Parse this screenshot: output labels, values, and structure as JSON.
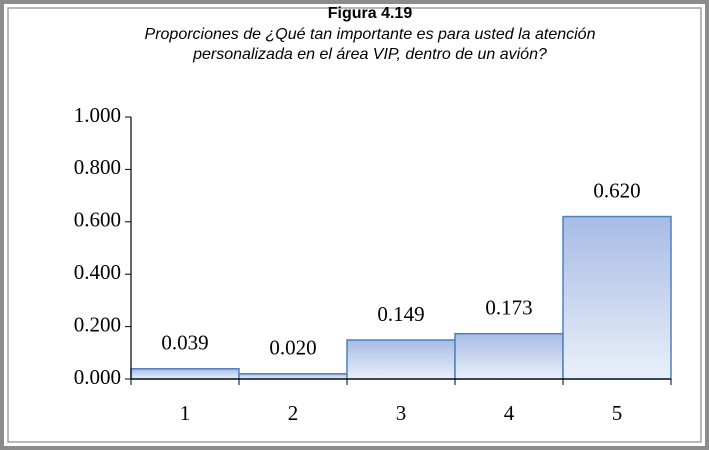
{
  "chart_data": {
    "type": "bar",
    "title": "Figura 4.19",
    "subtitle": [
      "Proporciones de ¿Qué tan importante es para usted la atención",
      "personalizada en el área VIP, dentro de un avión?"
    ],
    "categories": [
      "1",
      "2",
      "3",
      "4",
      "5"
    ],
    "values": [
      0.039,
      0.02,
      0.149,
      0.173,
      0.62
    ],
    "value_labels": [
      "0.039",
      "0.020",
      "0.149",
      "0.173",
      "0.620"
    ],
    "color": "#4f81bd",
    "ylim": [
      0,
      1
    ],
    "yticks": [
      {
        "value": 0,
        "label": "0.000"
      },
      {
        "value": 0.2,
        "label": "0.200"
      },
      {
        "value": 0.4,
        "label": "0.400"
      },
      {
        "value": 0.6,
        "label": "0.600"
      },
      {
        "value": 0.8,
        "label": "0.800"
      },
      {
        "value": 1,
        "label": "1.000"
      }
    ],
    "grid": false
  }
}
